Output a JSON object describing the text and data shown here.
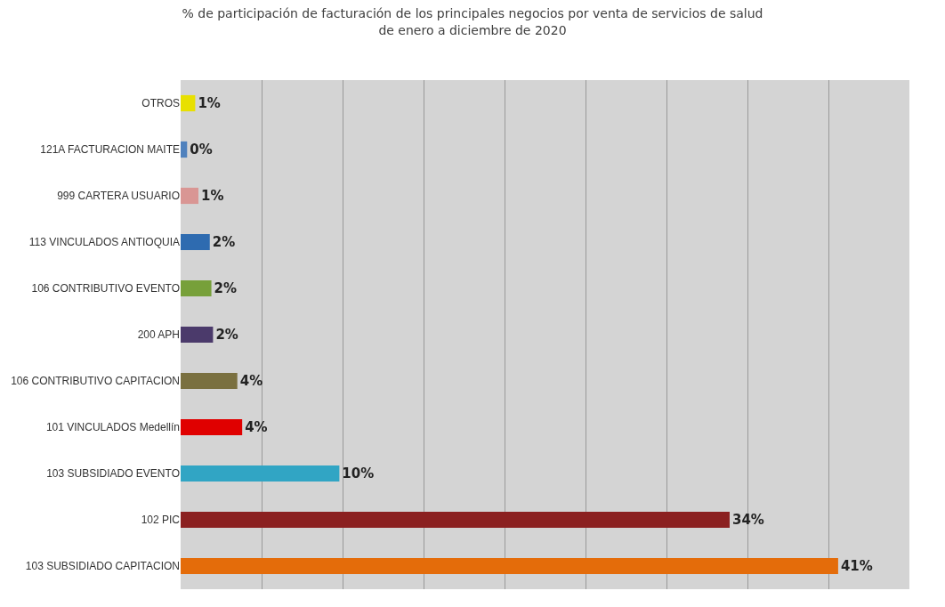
{
  "chart_data": {
    "type": "bar",
    "orientation": "horizontal",
    "title": "% de participación de facturación de los principales negocios por venta de servicios de salud\nde enero a diciembre de 2020",
    "categories": [
      "OTROS",
      "121A FACTURACION MAITE",
      "999 CARTERA USUARIO",
      "113 VINCULADOS ANTIOQUIA",
      "106 CONTRIBUTIVO EVENTO",
      "200 APH",
      "106 CONTRIBUTIVO CAPITACION",
      "101 VINCULADOS Medellín",
      "103 SUBSIDIADO EVENTO",
      "102 PIC",
      "103 SUBSIDIADO CAPITACION"
    ],
    "values": [
      0.9,
      0.4,
      1.1,
      1.8,
      1.9,
      2.0,
      3.5,
      3.8,
      9.8,
      33.9,
      40.6
    ],
    "value_labels": [
      "1%",
      "0%",
      "1%",
      "2%",
      "2%",
      "2%",
      "4%",
      "4%",
      "10%",
      "34%",
      "41%"
    ],
    "colors": [
      "#e8e000",
      "#4f81bd",
      "#d99694",
      "#2e6bb0",
      "#77a03a",
      "#4b3a6b",
      "#7a7040",
      "#e00000",
      "#31a5c4",
      "#8b2020",
      "#e46c0a"
    ],
    "xlim": [
      0,
      45
    ],
    "xticks": [
      {
        "value": 0,
        "label": null
      },
      {
        "value": 5,
        "label": null
      },
      {
        "value": 10,
        "label": null
      },
      {
        "value": 15,
        "label": null
      },
      {
        "value": 20,
        "label": null
      },
      {
        "value": 25,
        "label": null
      },
      {
        "value": 30,
        "label": null
      },
      {
        "value": 35,
        "label": null
      },
      {
        "value": 40,
        "label": null
      },
      {
        "value": 45,
        "label": null
      }
    ],
    "grid": "x",
    "tick_labels": "y"
  }
}
